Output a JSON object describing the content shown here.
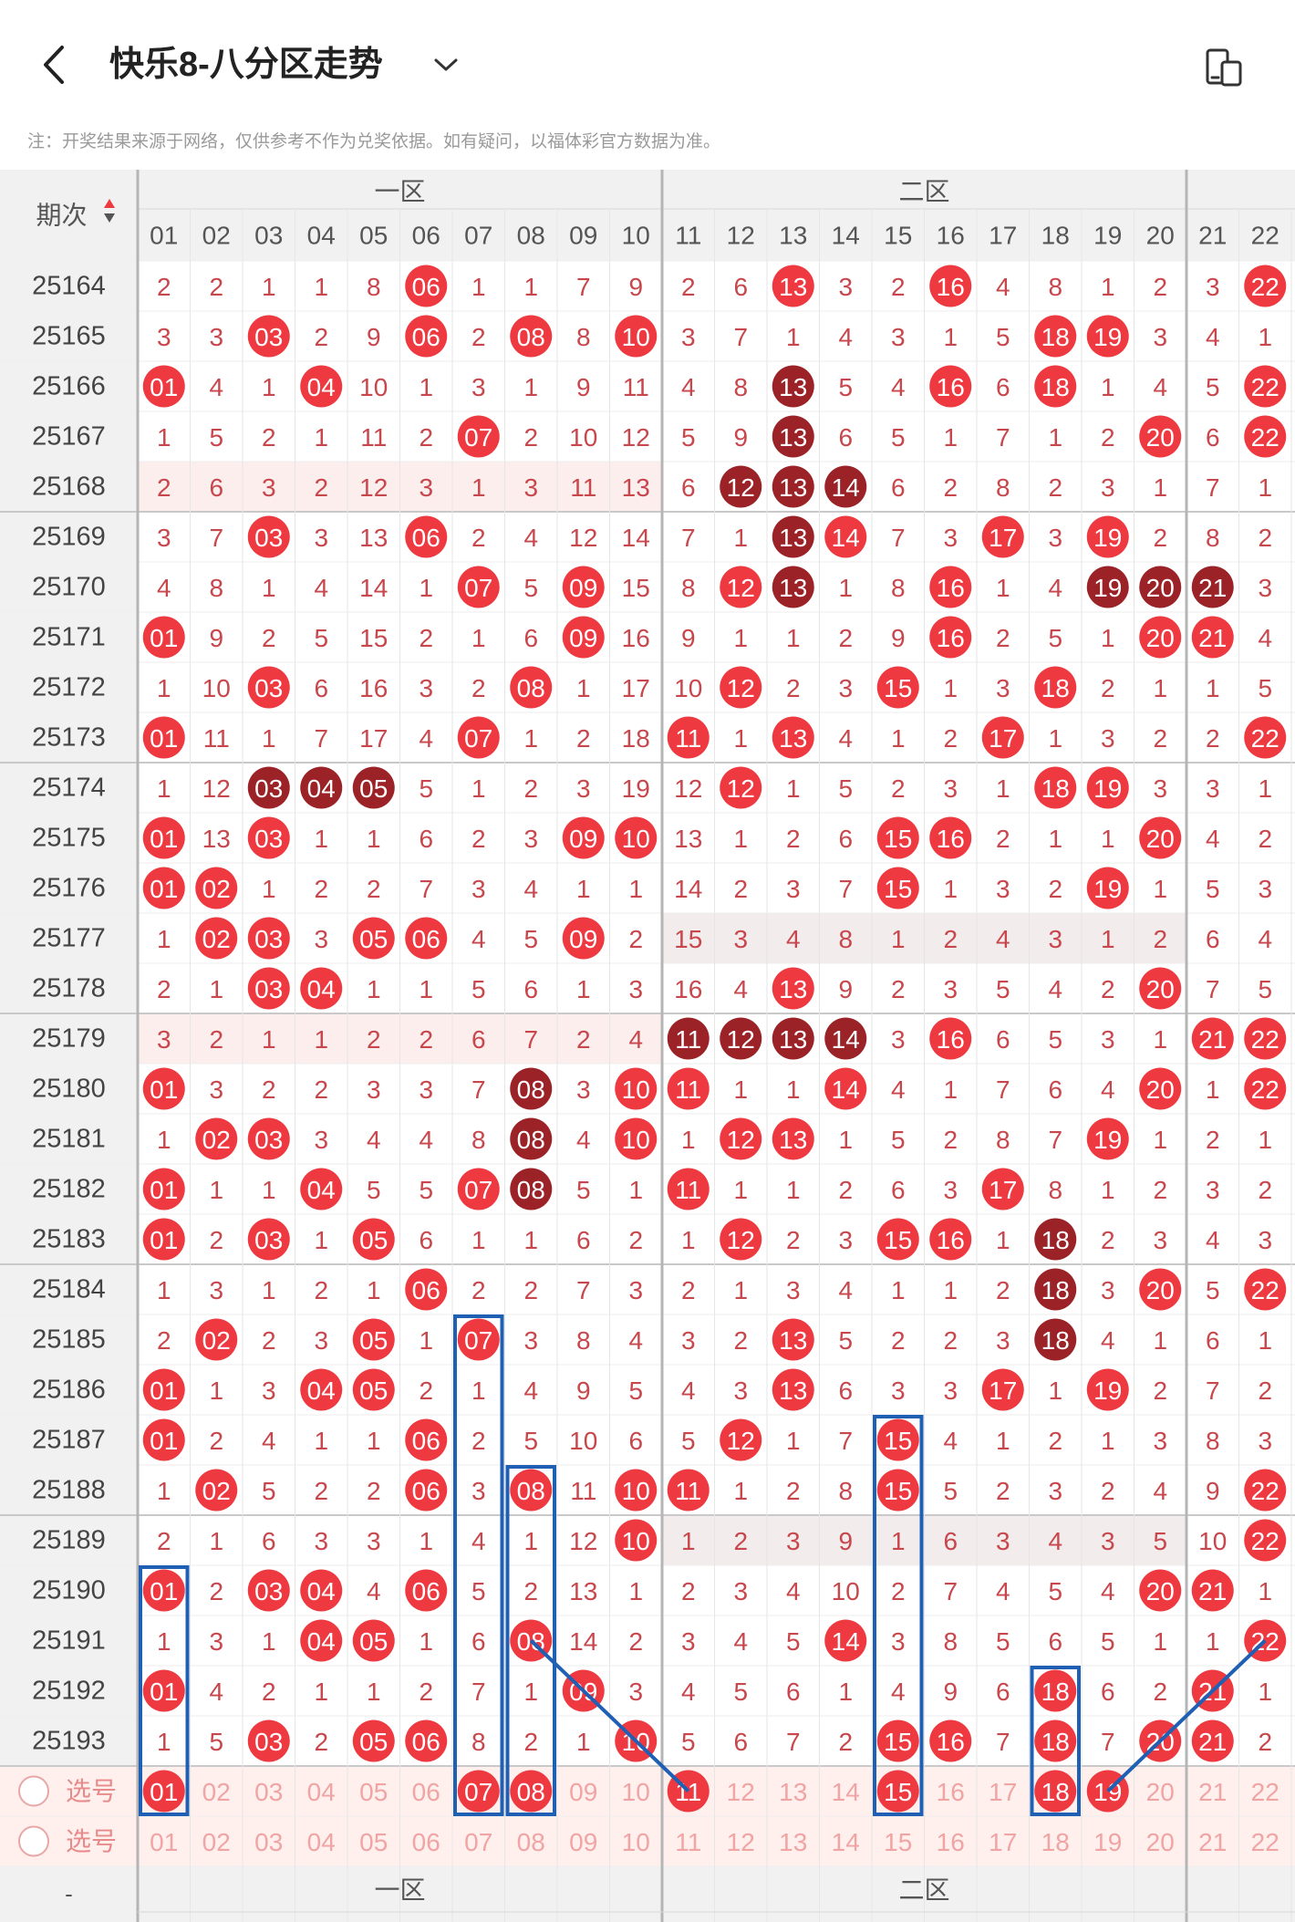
{
  "header": {
    "title": "快乐8-八分区走势",
    "back_icon": "chevron-left-icon",
    "dropdown_icon": "chevron-down-icon",
    "device_icon": "device-switch-icon"
  },
  "note": "注：开奖结果来源于网络，仅供参考不作为兑奖依据。如有疑问，以福体彩官方数据为准。",
  "table": {
    "period_header": "期次",
    "zone1_label": "一区",
    "zone2_label": "二区",
    "columns": [
      "01",
      "02",
      "03",
      "04",
      "05",
      "06",
      "07",
      "08",
      "09",
      "10",
      "11",
      "12",
      "13",
      "14",
      "15",
      "16",
      "17",
      "18",
      "19",
      "20",
      "21",
      "22"
    ],
    "rows": [
      {
        "period": "25164",
        "cells": [
          "2",
          "2",
          "1",
          "1",
          "8",
          "06",
          "1",
          "1",
          "7",
          "9",
          "2",
          "6",
          "13",
          "3",
          "2",
          "16",
          "4",
          "8",
          "1",
          "2",
          "3",
          "22"
        ]
      },
      {
        "period": "25165",
        "cells": [
          "3",
          "3",
          "03",
          "2",
          "9",
          "06",
          "2",
          "08",
          "8",
          "10",
          "3",
          "7",
          "1",
          "4",
          "3",
          "1",
          "5",
          "18",
          "19",
          "3",
          "4",
          "1"
        ]
      },
      {
        "period": "25166",
        "cells": [
          "01",
          "4",
          "1",
          "04",
          "10",
          "1",
          "3",
          "1",
          "9",
          "11",
          "4",
          "8",
          "13",
          "5",
          "4",
          "16",
          "6",
          "18",
          "1",
          "4",
          "5",
          "22"
        ]
      },
      {
        "period": "25167",
        "cells": [
          "1",
          "5",
          "2",
          "1",
          "11",
          "2",
          "07",
          "2",
          "10",
          "12",
          "5",
          "9",
          "13",
          "6",
          "5",
          "1",
          "7",
          "1",
          "2",
          "20",
          "6",
          "22"
        ]
      },
      {
        "period": "25168",
        "cells": [
          "2",
          "6",
          "3",
          "2",
          "12",
          "3",
          "1",
          "3",
          "11",
          "13",
          "6",
          "12",
          "13",
          "14",
          "6",
          "2",
          "8",
          "2",
          "3",
          "1",
          "7",
          "1"
        ]
      },
      {
        "period": "25169",
        "cells": [
          "3",
          "7",
          "03",
          "3",
          "13",
          "06",
          "2",
          "4",
          "12",
          "14",
          "7",
          "1",
          "13",
          "14",
          "7",
          "3",
          "17",
          "3",
          "19",
          "2",
          "8",
          "2"
        ]
      },
      {
        "period": "25170",
        "cells": [
          "4",
          "8",
          "1",
          "4",
          "14",
          "1",
          "07",
          "5",
          "09",
          "15",
          "8",
          "12",
          "13",
          "1",
          "8",
          "16",
          "1",
          "4",
          "19",
          "20",
          "21",
          "3"
        ]
      },
      {
        "period": "25171",
        "cells": [
          "01",
          "9",
          "2",
          "5",
          "15",
          "2",
          "1",
          "6",
          "09",
          "16",
          "9",
          "1",
          "1",
          "2",
          "9",
          "16",
          "2",
          "5",
          "1",
          "20",
          "21",
          "4"
        ]
      },
      {
        "period": "25172",
        "cells": [
          "1",
          "10",
          "03",
          "6",
          "16",
          "3",
          "2",
          "08",
          "1",
          "17",
          "10",
          "12",
          "2",
          "3",
          "15",
          "1",
          "3",
          "18",
          "2",
          "1",
          "1",
          "5"
        ]
      },
      {
        "period": "25173",
        "cells": [
          "01",
          "11",
          "1",
          "7",
          "17",
          "4",
          "07",
          "1",
          "2",
          "18",
          "11",
          "1",
          "13",
          "4",
          "1",
          "2",
          "17",
          "1",
          "3",
          "2",
          "2",
          "22"
        ]
      },
      {
        "period": "25174",
        "cells": [
          "1",
          "12",
          "03",
          "04",
          "05",
          "5",
          "1",
          "2",
          "3",
          "19",
          "12",
          "12",
          "1",
          "5",
          "2",
          "3",
          "1",
          "18",
          "19",
          "3",
          "3",
          "1"
        ]
      },
      {
        "period": "25175",
        "cells": [
          "01",
          "13",
          "03",
          "1",
          "1",
          "6",
          "2",
          "3",
          "09",
          "10",
          "13",
          "1",
          "2",
          "6",
          "15",
          "16",
          "2",
          "1",
          "1",
          "20",
          "4",
          "2"
        ]
      },
      {
        "period": "25176",
        "cells": [
          "01",
          "02",
          "1",
          "2",
          "2",
          "7",
          "3",
          "4",
          "1",
          "1",
          "14",
          "2",
          "3",
          "7",
          "15",
          "1",
          "3",
          "2",
          "19",
          "1",
          "5",
          "3"
        ]
      },
      {
        "period": "25177",
        "cells": [
          "1",
          "02",
          "03",
          "3",
          "05",
          "06",
          "4",
          "5",
          "09",
          "2",
          "15",
          "3",
          "4",
          "8",
          "1",
          "2",
          "4",
          "3",
          "1",
          "2",
          "6",
          "4"
        ]
      },
      {
        "period": "25178",
        "cells": [
          "2",
          "1",
          "03",
          "04",
          "1",
          "1",
          "5",
          "6",
          "1",
          "3",
          "16",
          "4",
          "13",
          "9",
          "2",
          "3",
          "5",
          "4",
          "2",
          "20",
          "7",
          "5"
        ]
      },
      {
        "period": "25179",
        "cells": [
          "3",
          "2",
          "1",
          "1",
          "2",
          "2",
          "6",
          "7",
          "2",
          "4",
          "11",
          "12",
          "13",
          "14",
          "3",
          "16",
          "6",
          "5",
          "3",
          "1",
          "21",
          "22"
        ]
      },
      {
        "period": "25180",
        "cells": [
          "01",
          "3",
          "2",
          "2",
          "3",
          "3",
          "7",
          "08",
          "3",
          "10",
          "11",
          "1",
          "1",
          "14",
          "4",
          "1",
          "7",
          "6",
          "4",
          "20",
          "1",
          "22"
        ]
      },
      {
        "period": "25181",
        "cells": [
          "1",
          "02",
          "03",
          "3",
          "4",
          "4",
          "8",
          "08",
          "4",
          "10",
          "1",
          "12",
          "13",
          "1",
          "5",
          "2",
          "8",
          "7",
          "19",
          "1",
          "2",
          "1"
        ]
      },
      {
        "period": "25182",
        "cells": [
          "01",
          "1",
          "1",
          "04",
          "5",
          "5",
          "07",
          "08",
          "5",
          "1",
          "11",
          "1",
          "1",
          "2",
          "6",
          "3",
          "17",
          "8",
          "1",
          "2",
          "3",
          "2"
        ]
      },
      {
        "period": "25183",
        "cells": [
          "01",
          "2",
          "03",
          "1",
          "05",
          "6",
          "1",
          "1",
          "6",
          "2",
          "1",
          "12",
          "2",
          "3",
          "15",
          "16",
          "1",
          "18",
          "2",
          "3",
          "4",
          "3"
        ]
      },
      {
        "period": "25184",
        "cells": [
          "1",
          "3",
          "1",
          "2",
          "1",
          "06",
          "2",
          "2",
          "7",
          "3",
          "2",
          "1",
          "3",
          "4",
          "1",
          "1",
          "2",
          "18",
          "3",
          "20",
          "5",
          "22"
        ]
      },
      {
        "period": "25185",
        "cells": [
          "2",
          "02",
          "2",
          "3",
          "05",
          "1",
          "07",
          "3",
          "8",
          "4",
          "3",
          "2",
          "13",
          "5",
          "2",
          "2",
          "3",
          "18",
          "4",
          "1",
          "6",
          "1"
        ]
      },
      {
        "period": "25186",
        "cells": [
          "01",
          "1",
          "3",
          "04",
          "05",
          "2",
          "1",
          "4",
          "9",
          "5",
          "4",
          "3",
          "13",
          "6",
          "3",
          "3",
          "17",
          "1",
          "19",
          "2",
          "7",
          "2"
        ]
      },
      {
        "period": "25187",
        "cells": [
          "01",
          "2",
          "4",
          "1",
          "1",
          "06",
          "2",
          "5",
          "10",
          "6",
          "5",
          "12",
          "1",
          "7",
          "15",
          "4",
          "1",
          "2",
          "1",
          "3",
          "8",
          "3"
        ]
      },
      {
        "period": "25188",
        "cells": [
          "1",
          "02",
          "5",
          "2",
          "2",
          "06",
          "3",
          "08",
          "11",
          "10",
          "11",
          "1",
          "2",
          "8",
          "15",
          "5",
          "2",
          "3",
          "2",
          "4",
          "9",
          "22"
        ]
      },
      {
        "period": "25189",
        "cells": [
          "2",
          "1",
          "6",
          "3",
          "3",
          "1",
          "4",
          "1",
          "12",
          "10",
          "1",
          "2",
          "3",
          "9",
          "1",
          "6",
          "3",
          "4",
          "3",
          "5",
          "10",
          "22"
        ]
      },
      {
        "period": "25190",
        "cells": [
          "01",
          "2",
          "03",
          "04",
          "4",
          "06",
          "5",
          "2",
          "13",
          "1",
          "2",
          "3",
          "4",
          "10",
          "2",
          "7",
          "4",
          "5",
          "4",
          "20",
          "21",
          "1"
        ]
      },
      {
        "period": "25191",
        "cells": [
          "1",
          "3",
          "1",
          "04",
          "05",
          "1",
          "6",
          "08",
          "14",
          "2",
          "3",
          "4",
          "5",
          "14",
          "3",
          "8",
          "5",
          "6",
          "5",
          "1",
          "1",
          "22"
        ]
      },
      {
        "period": "25192",
        "cells": [
          "01",
          "4",
          "2",
          "1",
          "1",
          "2",
          "7",
          "1",
          "09",
          "3",
          "4",
          "5",
          "6",
          "1",
          "4",
          "9",
          "6",
          "18",
          "6",
          "2",
          "21",
          "1"
        ]
      },
      {
        "period": "25193",
        "cells": [
          "1",
          "5",
          "03",
          "2",
          "05",
          "06",
          "8",
          "2",
          "1",
          "10",
          "5",
          "6",
          "7",
          "2",
          "15",
          "16",
          "7",
          "18",
          "7",
          "20",
          "21",
          "2"
        ]
      }
    ],
    "select_label": "选号",
    "select_rows": [
      {
        "label": "选号",
        "selected": [
          "01",
          "07",
          "08",
          "11",
          "15",
          "18",
          "19"
        ]
      },
      {
        "label": "选号",
        "selected": []
      }
    ],
    "dark_cells": [
      "25166:13",
      "25167:13",
      "25168:12",
      "25168:13",
      "25168:14",
      "25169:13",
      "25170:13",
      "25170:19",
      "25170:20",
      "25170:21",
      "25174:03",
      "25174:04",
      "25174:05",
      "25179:11",
      "25179:12",
      "25179:13",
      "25179:14",
      "25180:08",
      "25181:08",
      "25182:08",
      "25183:18",
      "25184:18",
      "25185:18"
    ],
    "shaded_ranges": [
      {
        "period": "25168",
        "from": "01",
        "to": "10"
      },
      {
        "period": "25177",
        "from": "11",
        "to": "20"
      },
      {
        "period": "25179",
        "from": "01",
        "to": "10"
      },
      {
        "period": "25189",
        "from": "11",
        "to": "20"
      }
    ],
    "highlight_boxes": [
      {
        "column": "01",
        "from": "25190",
        "to": "select-1"
      },
      {
        "column": "07",
        "from": "25185",
        "to": "select-1"
      },
      {
        "column": "08",
        "from": "25188",
        "to": "select-1"
      },
      {
        "column": "15",
        "from": "25187",
        "to": "select-1"
      },
      {
        "column": "18",
        "from": "25192",
        "to": "select-1"
      }
    ],
    "trend_lines": [
      {
        "from_period": "25191",
        "from_col": "08",
        "to_period": "select-1",
        "to_col": "11"
      },
      {
        "from_period": "25191",
        "from_col": "22",
        "to_period": "select-1",
        "to_col": "19"
      }
    ],
    "colors": {
      "red_ball": "#ee3940",
      "dark_ball": "#9b2226",
      "number_text": "#c8474d",
      "grid_line": "#d8d8d8",
      "zone_divider": "#b5b5b5",
      "header_bg": "#f1f1f1",
      "shade_bg": "#fdeeee",
      "shade_gray": "#f3ecec",
      "select_bg": "#fff0ee",
      "box_blue": "#1f5fb4"
    }
  }
}
